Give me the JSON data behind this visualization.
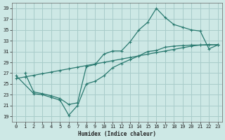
{
  "bg_color": "#cde8e5",
  "grid_color": "#a8ccca",
  "line_color": "#2a7a70",
  "xlabel": "Humidex (Indice chaleur)",
  "xlim": [
    -0.5,
    23.5
  ],
  "ylim": [
    18,
    40
  ],
  "yticks": [
    19,
    21,
    23,
    25,
    27,
    29,
    31,
    33,
    35,
    37,
    39
  ],
  "xticks": [
    0,
    1,
    2,
    3,
    4,
    5,
    6,
    7,
    8,
    9,
    10,
    11,
    12,
    13,
    14,
    15,
    16,
    17,
    18,
    19,
    20,
    21,
    22,
    23
  ],
  "line1_x": [
    0,
    1,
    2,
    3,
    4,
    5,
    6,
    7,
    8,
    9,
    10,
    11,
    12,
    13,
    14,
    15,
    16,
    17,
    18,
    19,
    20,
    21,
    22,
    23
  ],
  "line1_y": [
    26.0,
    26.3,
    26.6,
    26.9,
    27.2,
    27.5,
    27.8,
    28.1,
    28.4,
    28.7,
    29.0,
    29.3,
    29.6,
    29.9,
    30.2,
    30.5,
    30.8,
    31.1,
    31.4,
    31.7,
    32.0,
    32.2,
    32.3,
    32.2
  ],
  "line2_x": [
    1,
    2,
    3,
    4,
    5,
    6,
    7,
    8,
    9,
    10,
    11,
    12,
    13,
    14,
    15,
    16,
    17,
    18,
    19,
    20,
    21,
    22,
    23
  ],
  "line2_y": [
    27.0,
    23.5,
    23.2,
    22.8,
    22.3,
    21.2,
    21.5,
    28.2,
    28.6,
    30.5,
    31.1,
    31.1,
    32.8,
    35.0,
    36.4,
    39.0,
    37.3,
    36.0,
    35.5,
    35.0,
    34.8,
    31.5,
    32.2
  ],
  "line3_x": [
    0,
    2,
    3,
    4,
    5,
    6,
    7,
    8,
    9,
    10,
    11,
    12,
    13,
    14,
    15,
    16,
    17,
    18,
    19,
    20,
    21,
    22,
    23
  ],
  "line3_y": [
    26.5,
    23.2,
    23.0,
    22.5,
    22.0,
    19.2,
    21.0,
    25.0,
    25.5,
    26.5,
    28.0,
    28.8,
    29.5,
    30.2,
    31.0,
    31.2,
    31.8,
    32.0,
    32.1,
    32.2,
    32.2,
    32.2,
    32.3
  ]
}
